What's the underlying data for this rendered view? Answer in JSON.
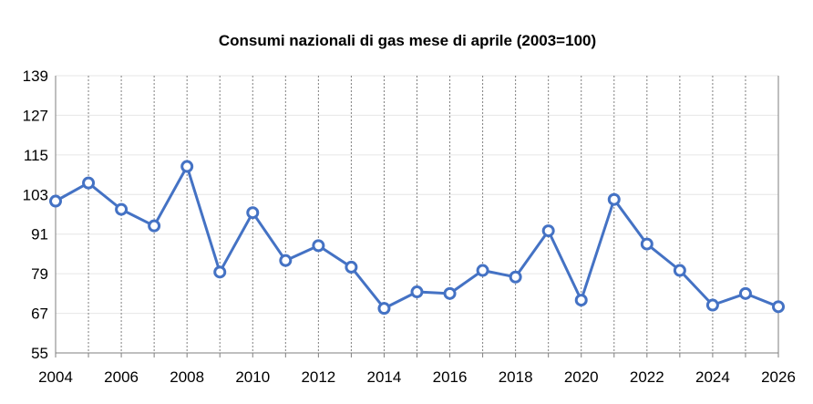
{
  "chart_data": {
    "type": "line",
    "title": "Consumi nazionali di gas mese di aprile (2003=100)",
    "xlabel": "",
    "ylabel": "",
    "x_ticks": [
      2004,
      2006,
      2008,
      2010,
      2012,
      2014,
      2016,
      2018,
      2020,
      2022,
      2024,
      2026
    ],
    "y_ticks": [
      55,
      67,
      79,
      91,
      103,
      115,
      127,
      139
    ],
    "xlim": [
      2004,
      2026
    ],
    "ylim": [
      55,
      139
    ],
    "grid": {
      "horizontal": true,
      "vertical": true
    },
    "legend": "none",
    "series": [
      {
        "color": "#4472c4",
        "marker": "circle",
        "x": [
          2004,
          2005,
          2006,
          2007,
          2008,
          2009,
          2010,
          2011,
          2012,
          2013,
          2014,
          2015,
          2016,
          2017,
          2018,
          2019,
          2020,
          2021,
          2022,
          2023,
          2024,
          2025,
          2026
        ],
        "values": [
          101,
          106.5,
          98.5,
          93.5,
          111.5,
          79.5,
          97.5,
          83,
          87.5,
          81,
          68.5,
          73.5,
          73,
          80,
          78,
          92,
          71,
          101.5,
          88,
          80,
          69.5,
          73,
          69
        ]
      }
    ]
  }
}
